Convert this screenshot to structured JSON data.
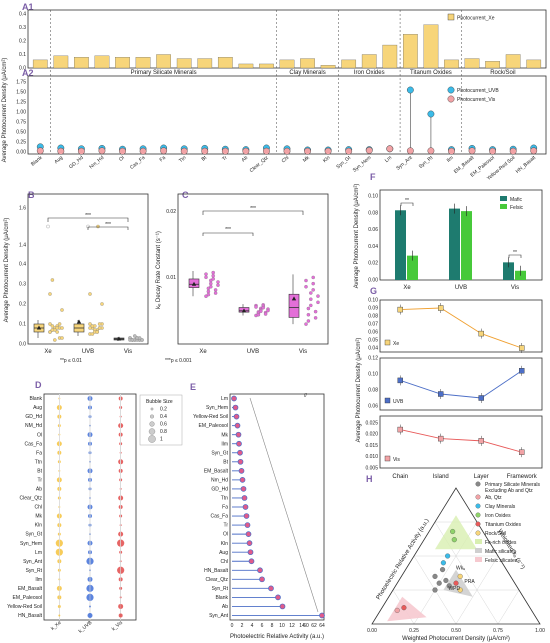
{
  "colors": {
    "yellow": "#f7d57a",
    "cyan": "#3bbbe8",
    "pink": "#f2a3a6",
    "magenta": "#e36fd8",
    "teal": "#1e7b6f",
    "green": "#47c93a",
    "blue": "#4d6fc7",
    "red": "#e85a5a",
    "orange": "#f0a030"
  },
  "labels": {
    "A1": "A1",
    "A2": "A2",
    "B": "B",
    "C": "C",
    "D": "D",
    "E": "E",
    "F": "F",
    "G": "G",
    "H": "H"
  },
  "chart_data": [
    {
      "id": "A1",
      "type": "bar",
      "ylabel": "Average Photocurrent Density (μA/cm²)",
      "ylim": [
        0,
        0.4
      ],
      "yticks": [
        "0.0",
        "0.1",
        "0.2",
        "0.3",
        "0.4"
      ],
      "categories": [
        "Blank",
        "Aug",
        "GD_Hd",
        "Nm_Hd",
        "Ol",
        "Cas_Fa",
        "Fa",
        "Ttn",
        "Bt",
        "Tr",
        "Ab",
        "Clear_Qtz",
        "Chl",
        "Mk",
        "Kln",
        "Syn_Gt",
        "Syn_Hem",
        "Lm",
        "Syn_Ant",
        "Syn_Rt",
        "Ilm",
        "EM_Basalt",
        "EM_Paleosol",
        "Yellow-Red Soil",
        "HN_Basalt"
      ],
      "series": [
        {
          "name": "Photocurrent_Xe",
          "values": [
            0.06,
            0.09,
            0.08,
            0.09,
            0.08,
            0.08,
            0.1,
            0.07,
            0.07,
            0.08,
            0.03,
            0.03,
            0.06,
            0.07,
            0.02,
            0.06,
            0.1,
            0.17,
            0.25,
            0.32,
            0.06,
            0.07,
            0.05,
            0.1,
            0.06
          ]
        }
      ],
      "groups": [
        {
          "label": "Primary Silicate Minerals",
          "from": 1,
          "to": 11
        },
        {
          "label": "Clay Minerals",
          "from": 12,
          "to": 14
        },
        {
          "label": "Iron Oxides",
          "from": 15,
          "to": 17
        },
        {
          "label": "Titanum Oxides",
          "from": 18,
          "to": 20
        },
        {
          "label": "Rock/Soil",
          "from": 21,
          "to": 24
        }
      ]
    },
    {
      "id": "A2",
      "type": "dot",
      "ylim": [
        0,
        1.75
      ],
      "yticks": [
        "0.00",
        "0.25",
        "0.50",
        "0.75",
        "1.00",
        "1.25",
        "1.50",
        "1.75"
      ],
      "series": [
        {
          "name": "Photocurrent_UVB",
          "values": [
            0.13,
            0.1,
            0.08,
            0.09,
            0.07,
            0.08,
            0.1,
            0.08,
            0.09,
            0.07,
            0.06,
            0.1,
            0.08,
            0.05,
            0.05,
            0.06,
            0.06,
            0.08,
            1.55,
            0.95,
            0.06,
            0.09,
            0.06,
            0.07,
            0.1
          ]
        },
        {
          "name": "Photocurrent_Vis",
          "values": [
            0.03,
            0.02,
            0.02,
            0.03,
            0.02,
            0.02,
            0.03,
            0.02,
            0.02,
            0.02,
            0.02,
            0.02,
            0.02,
            0.02,
            0.02,
            0.02,
            0.04,
            0.08,
            0.03,
            0.03,
            0.02,
            0.03,
            0.02,
            0.02,
            0.03
          ]
        }
      ]
    },
    {
      "id": "B",
      "type": "box",
      "ylabel": "Average Photocurrent Density (μA/cm²)",
      "categories": [
        "Xe",
        "UVB",
        "Vis"
      ],
      "yticks": [
        "0.0",
        "0.1",
        "0.2",
        "0.3",
        "0.4",
        "1.4",
        "1.6"
      ],
      "boxes": [
        {
          "q1": 0.06,
          "med": 0.08,
          "q3": 0.1,
          "lo": 0.03,
          "hi": 0.12,
          "mean": 0.08
        },
        {
          "q1": 0.06,
          "med": 0.08,
          "q3": 0.1,
          "lo": 0.04,
          "hi": 0.12,
          "mean": 0.11
        },
        {
          "q1": 0.02,
          "med": 0.025,
          "q3": 0.03,
          "lo": 0.015,
          "hi": 0.035,
          "mean": 0.025
        }
      ],
      "points": [
        [
          0.06,
          0.09,
          0.08,
          0.09,
          0.08,
          0.08,
          0.1,
          0.07,
          0.07,
          0.08,
          0.03,
          0.03,
          0.06,
          0.07,
          0.02,
          0.06,
          0.1,
          0.17,
          0.25,
          0.32
        ],
        [
          0.1,
          0.08,
          0.09,
          0.07,
          0.08,
          0.1,
          0.08,
          0.09,
          0.07,
          0.06,
          0.1,
          0.08,
          0.05,
          0.05,
          0.06,
          0.06,
          0.08,
          0.2,
          0.25
        ],
        [
          0.03,
          0.02,
          0.02,
          0.03,
          0.02,
          0.02,
          0.03,
          0.02,
          0.02,
          0.02,
          0.02,
          0.02,
          0.02,
          0.02,
          0.04,
          0.03,
          0.03
        ]
      ],
      "sig": [
        "***",
        "***"
      ],
      "note": "**p ≤ 0.01"
    },
    {
      "id": "C",
      "type": "box",
      "ylabel": "kₑ Decay Rate Constant (s⁻¹)",
      "categories": [
        "Xe",
        "UVB",
        "Vis"
      ],
      "yticks": [
        "0.01",
        "0.02"
      ],
      "boxes": [
        {
          "q1": 0.0085,
          "med": 0.009,
          "q3": 0.0098,
          "lo": 0.0072,
          "hi": 0.011,
          "mean": 0.009
        },
        {
          "q1": 0.0048,
          "med": 0.005,
          "q3": 0.0055,
          "lo": 0.0043,
          "hi": 0.006,
          "mean": 0.005
        },
        {
          "q1": 0.004,
          "med": 0.0055,
          "q3": 0.0075,
          "lo": 0.003,
          "hi": 0.0105,
          "mean": 0.0068
        }
      ],
      "sig": [
        "***",
        "***"
      ],
      "note": "***p ≤ 0.001"
    },
    {
      "id": "D",
      "type": "bubble",
      "columns": [
        "k_Xe",
        "k_UVB",
        "k_Vis"
      ],
      "legend_title": "Bubble Size",
      "legend_values": [
        "0.2",
        "0.4",
        "0.6",
        "0.8",
        "1"
      ],
      "rows": [
        "Blank",
        "Aug",
        "GD_Hd",
        "NM_Hd",
        "Ol",
        "Cas_Fa",
        "Fa",
        "Ttn",
        "Bt",
        "Tr",
        "Ab",
        "Clear_Qtz",
        "Chl",
        "Mk",
        "Kln",
        "Syn_Gt",
        "Syn_Hem",
        "Lm",
        "Syn_Ant",
        "Syn_Rt",
        "Ilm",
        "EM_Basalt",
        "EM_Paleosol",
        "Yellow-Red Soil",
        "HN_Basalt"
      ]
    },
    {
      "id": "E",
      "type": "lollipop",
      "xlabel": "Photoelectric Relative Activity (a.u.)",
      "xticks": [
        "0",
        "2",
        "4",
        "6",
        "8",
        "10",
        "12",
        "14",
        "60",
        "62",
        "64"
      ],
      "rows": [
        "Lm",
        "Syn_Hem",
        "Yellow-Red Soil",
        "EM_Paleosol",
        "Mk",
        "Ilm",
        "Syn_Gt",
        "Bt",
        "EM_Basalt",
        "Nm_Hd",
        "GD_Hd",
        "Ttn",
        "Fa",
        "Cas_Fa",
        "Tr",
        "Ol",
        "Kln",
        "Aug",
        "Chl",
        "HN_Basalt",
        "Clear_Qtz",
        "Syn_Rt",
        "Blank",
        "Ab",
        "Syn_Ant"
      ],
      "values": [
        0.4,
        0.7,
        0.9,
        1.1,
        1.3,
        1.4,
        1.6,
        1.7,
        1.9,
        2.1,
        2.3,
        2.5,
        2.7,
        2.9,
        3.1,
        3.3,
        3.5,
        3.7,
        3.9,
        5.6,
        6.0,
        7.8,
        9.2,
        10.1,
        64
      ]
    },
    {
      "id": "F",
      "type": "bar",
      "ylabel": "Average Photocurrent Density (μA/cm²)",
      "categories": [
        "Xe",
        "UVB",
        "Vis"
      ],
      "yticks": [
        "0.00",
        "0.02",
        "0.04",
        "0.06",
        "0.08",
        "0.10"
      ],
      "ylim": [
        0,
        0.1
      ],
      "series": [
        {
          "name": "Mafic",
          "values": [
            0.083,
            0.085,
            0.021
          ]
        },
        {
          "name": "Felsic",
          "values": [
            0.029,
            0.082,
            0.011
          ]
        }
      ],
      "sig": [
        "**",
        "**"
      ]
    },
    {
      "id": "G",
      "type": "line",
      "categories": [
        "Chain",
        "Island",
        "Layer",
        "Framework"
      ],
      "series": [
        {
          "name": "Xe",
          "values": [
            0.088,
            0.09,
            0.058,
            0.04
          ],
          "yticks": [
            "0.04",
            "0.05",
            "0.06",
            "0.07",
            "0.08",
            "0.09",
            "0.10"
          ]
        },
        {
          "name": "UVB",
          "values": [
            0.092,
            0.075,
            0.07,
            0.104
          ],
          "yticks": [
            "0.06",
            "0.08",
            "0.10",
            "0.12"
          ]
        },
        {
          "name": "Vis",
          "values": [
            0.022,
            0.018,
            0.017,
            0.012
          ],
          "yticks": [
            "0.005",
            "0.010",
            "0.015",
            "0.020",
            "0.025"
          ]
        }
      ]
    },
    {
      "id": "H",
      "type": "ternary",
      "axis_left": "Photoelectric Relative Activity (a.u.)",
      "axis_right": "Weighted kₑ (s⁻¹)",
      "axis_bottom": "Weighted Photocurrent Density (μA/cm²)",
      "ticks": [
        "0.00",
        "0.25",
        "0.50",
        "0.75",
        "1.00"
      ],
      "legend": [
        "Primary Silicate Minerals Excluding Ab and Qtz",
        "Ab, Qtz",
        "Clay Minerals",
        "Iron Oxides",
        "Titanium Oxides",
        "Rock/Soil",
        "Fe-rich oxides",
        "Mafic silicates",
        "Felsic silicates"
      ],
      "zone_labels": [
        "WPD",
        "PRA",
        "Wkₑ"
      ]
    }
  ]
}
